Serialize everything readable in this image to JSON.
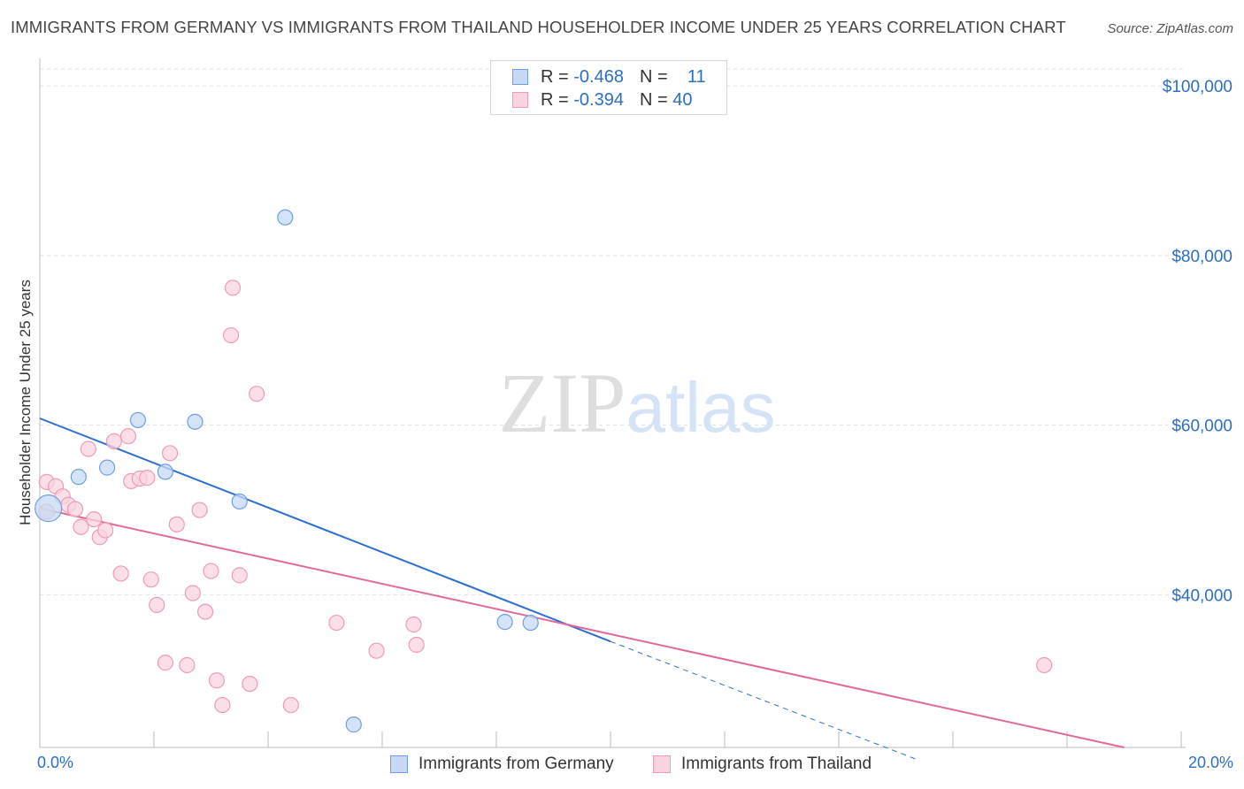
{
  "chart_data": {
    "type": "scatter",
    "title": "IMMIGRANTS FROM GERMANY VS IMMIGRANTS FROM THAILAND HOUSEHOLDER INCOME UNDER 25 YEARS CORRELATION CHART",
    "source": "Source: ZipAtlas.com",
    "xlabel": "",
    "ylabel": "Householder Income Under 25 years",
    "xlim": [
      0,
      20
    ],
    "ylim": [
      22000,
      102000
    ],
    "x_tick_labels": [
      "0.0%",
      "20.0%"
    ],
    "y_ticks": [
      40000,
      60000,
      80000,
      100000
    ],
    "y_tick_labels": [
      "$40,000",
      "$60,000",
      "$80,000",
      "$100,000"
    ],
    "watermark": "ZIPatlas",
    "legend": {
      "rows": [
        {
          "r_label": "R =",
          "r_value": "-0.468",
          "n_label": "N =",
          "n_value": "11"
        },
        {
          "r_label": "R =",
          "r_value": "-0.394",
          "n_label": "N =",
          "n_value": "40"
        }
      ]
    },
    "series": [
      {
        "name": "Immigrants from Germany",
        "color": "#6f9fe0",
        "fill": "#c5d9f5",
        "line_color": "#2b6fd0",
        "trend": {
          "x0": 0.0,
          "y0": 60800,
          "x1": 10.0,
          "y1": 34500,
          "dash_to_x": 15.4,
          "dash_to_y": 20500
        },
        "points": [
          {
            "x": 0.15,
            "y": 50200,
            "big": true
          },
          {
            "x": 0.68,
            "y": 53900
          },
          {
            "x": 1.18,
            "y": 55000
          },
          {
            "x": 1.72,
            "y": 60600
          },
          {
            "x": 2.2,
            "y": 54500
          },
          {
            "x": 2.72,
            "y": 60400
          },
          {
            "x": 3.5,
            "y": 51000
          },
          {
            "x": 4.3,
            "y": 84500
          },
          {
            "x": 5.5,
            "y": 24700
          },
          {
            "x": 8.15,
            "y": 36800
          },
          {
            "x": 8.6,
            "y": 36700
          }
        ]
      },
      {
        "name": "Immigrants from Thailand",
        "color": "#ef9bb5",
        "fill": "#f9d3df",
        "line_color": "#e0689a",
        "trend": {
          "x0": 0.0,
          "y0": 50200,
          "x1": 19.0,
          "y1": 22000
        },
        "points": [
          {
            "x": 0.12,
            "y": 53300
          },
          {
            "x": 0.12,
            "y": 49800
          },
          {
            "x": 0.28,
            "y": 52800
          },
          {
            "x": 0.4,
            "y": 51600
          },
          {
            "x": 0.5,
            "y": 50600
          },
          {
            "x": 0.62,
            "y": 50100
          },
          {
            "x": 0.72,
            "y": 48000
          },
          {
            "x": 0.85,
            "y": 57200
          },
          {
            "x": 0.95,
            "y": 48900
          },
          {
            "x": 1.05,
            "y": 46800
          },
          {
            "x": 1.15,
            "y": 47600
          },
          {
            "x": 1.3,
            "y": 58100
          },
          {
            "x": 1.42,
            "y": 42500
          },
          {
            "x": 1.55,
            "y": 58700
          },
          {
            "x": 1.6,
            "y": 53400
          },
          {
            "x": 1.75,
            "y": 53700
          },
          {
            "x": 1.88,
            "y": 53800
          },
          {
            "x": 1.95,
            "y": 41800
          },
          {
            "x": 2.05,
            "y": 38800
          },
          {
            "x": 2.2,
            "y": 32000
          },
          {
            "x": 2.28,
            "y": 56700
          },
          {
            "x": 2.4,
            "y": 48300
          },
          {
            "x": 2.58,
            "y": 31700
          },
          {
            "x": 2.68,
            "y": 40200
          },
          {
            "x": 2.8,
            "y": 50000
          },
          {
            "x": 2.9,
            "y": 38000
          },
          {
            "x": 3.0,
            "y": 42800
          },
          {
            "x": 3.1,
            "y": 29900
          },
          {
            "x": 3.2,
            "y": 27000
          },
          {
            "x": 3.35,
            "y": 70600
          },
          {
            "x": 3.38,
            "y": 76200
          },
          {
            "x": 3.5,
            "y": 42300
          },
          {
            "x": 3.68,
            "y": 29500
          },
          {
            "x": 3.8,
            "y": 63700
          },
          {
            "x": 4.4,
            "y": 27000
          },
          {
            "x": 5.2,
            "y": 36700
          },
          {
            "x": 5.9,
            "y": 33400
          },
          {
            "x": 6.55,
            "y": 36500
          },
          {
            "x": 6.6,
            "y": 34100
          },
          {
            "x": 17.6,
            "y": 31700
          }
        ]
      }
    ]
  }
}
